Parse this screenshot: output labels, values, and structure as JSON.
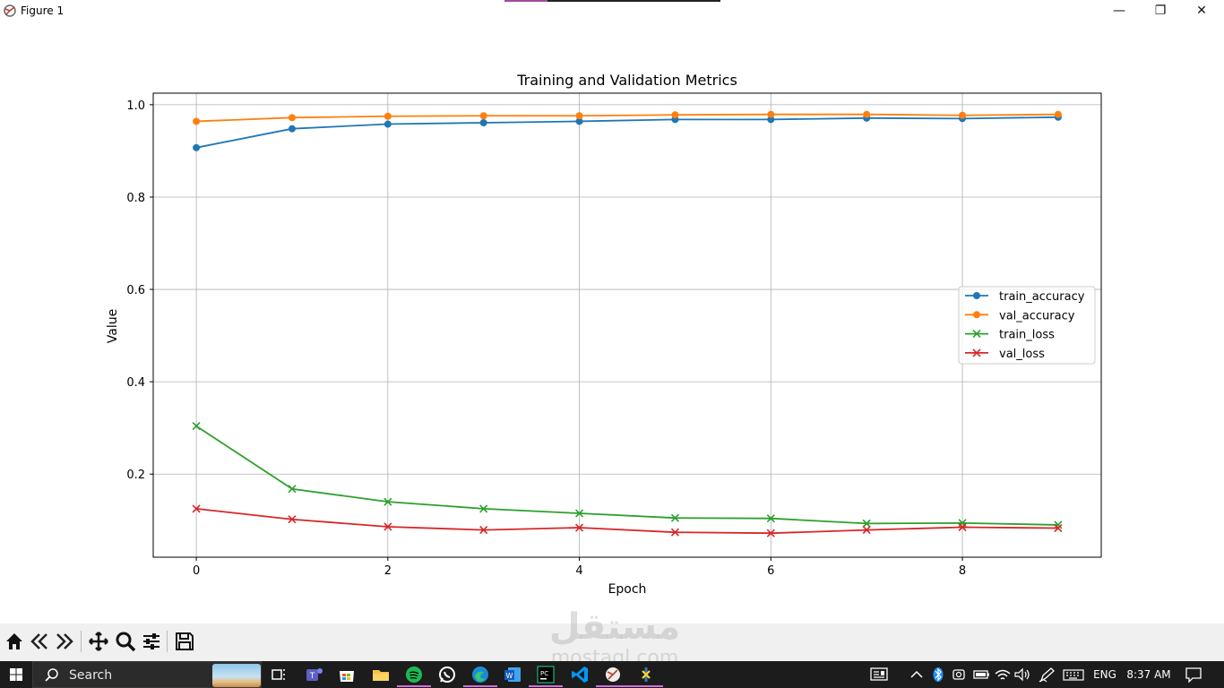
{
  "window": {
    "title": "Figure 1",
    "minimize_glyph": "—",
    "maximize_glyph": "❐",
    "close_glyph": "✕"
  },
  "toolbar": {
    "icons": [
      "home-icon",
      "back-icon",
      "forward-icon",
      "pan-icon",
      "zoom-icon",
      "configure-subplots-icon",
      "save-icon"
    ]
  },
  "chart_data": {
    "type": "line",
    "title": "Training and Validation Metrics",
    "xlabel": "Epoch",
    "ylabel": "Value",
    "x": [
      0,
      1,
      2,
      3,
      4,
      5,
      6,
      7,
      8,
      9
    ],
    "xlim": [
      -0.45,
      9.45
    ],
    "ylim": [
      0.02,
      1.025
    ],
    "xticks": [
      0,
      2,
      4,
      6,
      8
    ],
    "yticks": [
      0.2,
      0.4,
      0.6,
      0.8,
      1.0
    ],
    "ytick_labels": [
      "0.2",
      "0.4",
      "0.6",
      "0.8",
      "1.0"
    ],
    "grid": true,
    "legend_position": "center-right",
    "series": [
      {
        "name": "train_accuracy",
        "color": "#1f77b4",
        "marker": "o",
        "values": [
          0.907,
          0.948,
          0.958,
          0.961,
          0.964,
          0.968,
          0.968,
          0.971,
          0.97,
          0.973
        ]
      },
      {
        "name": "val_accuracy",
        "color": "#ff7f0e",
        "marker": "o",
        "values": [
          0.964,
          0.972,
          0.975,
          0.976,
          0.976,
          0.978,
          0.979,
          0.979,
          0.977,
          0.979
        ]
      },
      {
        "name": "train_loss",
        "color": "#2ca02c",
        "marker": "x",
        "values": [
          0.304,
          0.168,
          0.14,
          0.125,
          0.115,
          0.105,
          0.104,
          0.093,
          0.094,
          0.09
        ]
      },
      {
        "name": "val_loss",
        "color": "#d62728",
        "marker": "x",
        "values": [
          0.125,
          0.102,
          0.086,
          0.079,
          0.084,
          0.074,
          0.072,
          0.079,
          0.085,
          0.083
        ]
      }
    ]
  },
  "taskbar": {
    "search_placeholder": "Search",
    "apps": [
      "task-view-icon",
      "teams-icon",
      "store-icon",
      "file-explorer-icon",
      "spotify-icon",
      "whatsapp-icon",
      "edge-icon",
      "word-icon",
      "pycharm-icon",
      "vscode-icon",
      "python-figure-icon",
      "python-icon"
    ],
    "tray_icons": [
      "news-icon",
      "chevron-up-icon",
      "bluetooth-icon",
      "camera-icon",
      "battery-icon",
      "wifi-icon",
      "volume-icon",
      "pen-icon",
      "keyboard-icon"
    ],
    "language": "ENG",
    "time": "8:37 AM",
    "notification_icon": "notification-icon"
  },
  "watermark": {
    "arabic": "مستقل",
    "latin": "mostaql.com"
  }
}
